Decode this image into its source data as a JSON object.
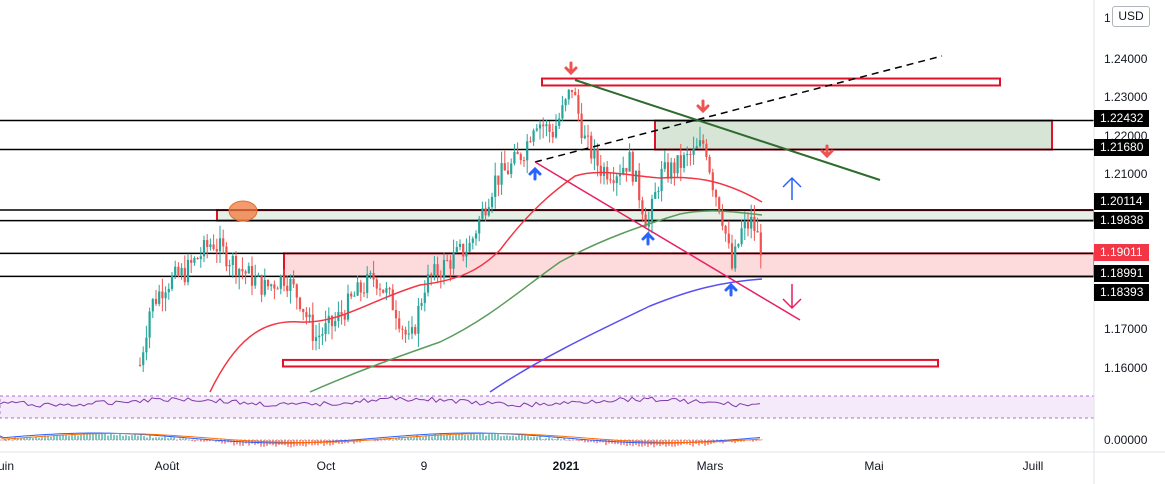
{
  "currency_button": "USD",
  "price_scale": {
    "top_partial": "1",
    "ticks": [
      "1.24000",
      "1.23000",
      "1.22000",
      "1.21000",
      "1.17000",
      "1.16000"
    ],
    "osc_tick": "0.00000"
  },
  "price_labels": [
    {
      "value": "1.22432",
      "style": "dark"
    },
    {
      "value": "1.21680",
      "style": "dark"
    },
    {
      "value": "1.20114",
      "style": "dark"
    },
    {
      "value": "1.19838",
      "style": "dark"
    },
    {
      "value": "1.19011",
      "style": "red"
    },
    {
      "value": "1.18991",
      "style": "dark"
    },
    {
      "value": "1.18393",
      "style": "dark"
    }
  ],
  "time_axis": {
    "labels": [
      "uin",
      "Août",
      "Oct",
      "9",
      "2021",
      "Mars",
      "Mai",
      "Juill"
    ]
  },
  "colors": {
    "up": "#26a69a",
    "down": "#ef5350",
    "zone_red": "#e0112b",
    "ma_red": "#f23645",
    "ma_green": "#5b9c5b",
    "ma_blue": "#5b4ff0",
    "trend_green": "#2e6b2e",
    "channel_pink": "#e91e63",
    "arrow_blue": "#2962ff",
    "price_label_dark": "#000000",
    "price_label_red": "#f23645"
  },
  "chart_data": {
    "type": "candlestick",
    "instrument_quote": "USD",
    "y_axis_visible_range": [
      1.155,
      1.248
    ],
    "time_range": [
      "2020-06",
      "2021-07"
    ],
    "current_price": 1.19011,
    "horizontal_levels": [
      1.22432,
      1.2168,
      1.20114,
      1.19838,
      1.18991,
      1.18393
    ],
    "zones": [
      {
        "type": "resistance",
        "from": 1.2334,
        "to": 1.2352
      },
      {
        "type": "supply",
        "from": 1.2168,
        "to": 1.2243
      },
      {
        "type": "key_zone",
        "from": 1.1984,
        "to": 1.2011
      },
      {
        "type": "demand",
        "from": 1.1839,
        "to": 1.1899
      },
      {
        "type": "support",
        "from": 1.1606,
        "to": 1.1623
      }
    ],
    "trend_lines": [
      {
        "style": "dashed-black",
        "from": [
          "2020-12-01",
          1.2125
        ],
        "to": [
          "2021-05-10",
          1.2405
        ]
      },
      {
        "style": "green",
        "from": [
          "2021-01-06",
          1.2345
        ],
        "to": [
          "2021-04-25",
          1.2088
        ]
      },
      {
        "style": "pink",
        "from": [
          "2020-12-01",
          1.2125
        ],
        "to": [
          "2021-04-20",
          1.1725
        ]
      }
    ],
    "moving_averages": [
      "red",
      "green",
      "blue"
    ],
    "oscillator_panels": [
      "RSI",
      "MACD"
    ]
  }
}
